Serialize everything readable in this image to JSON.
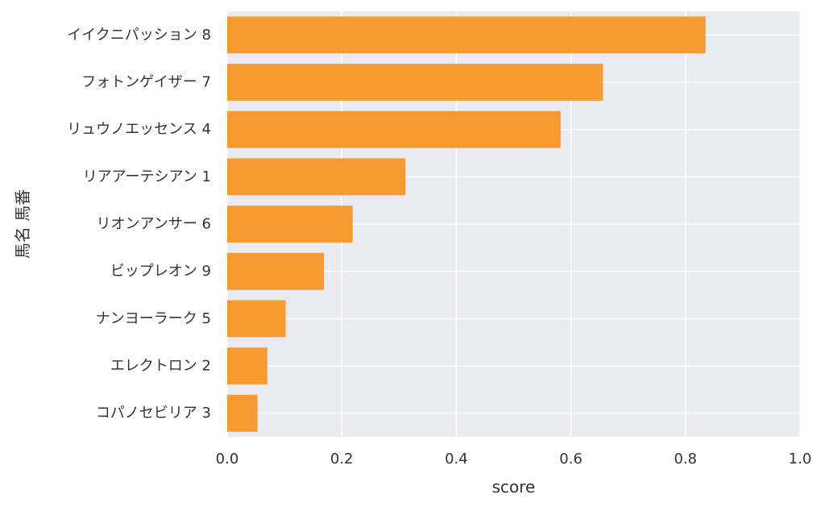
{
  "chart_data": {
    "type": "bar",
    "orientation": "horizontal",
    "categories": [
      "イイクニパッション 8",
      "フォトンゲイザー 7",
      "リュウノエッセンス 4",
      "リアアーテシアン 1",
      "リオンアンサー 6",
      "ビップレオン 9",
      "ナンヨーラーク 5",
      "エレクトロン 2",
      "コパノセビリア 3"
    ],
    "values": [
      0.835,
      0.656,
      0.582,
      0.311,
      0.219,
      0.169,
      0.102,
      0.07,
      0.053
    ],
    "xlabel": "score",
    "ylabel": "馬名 馬番",
    "xlim": [
      0,
      1.0
    ],
    "xticks": [
      "0.0",
      "0.2",
      "0.4",
      "0.6",
      "0.8",
      "1.0"
    ],
    "grid": true,
    "colors": {
      "bar": "#f7931e",
      "background": "#eaeaf2",
      "grid": "#ffffff"
    }
  }
}
